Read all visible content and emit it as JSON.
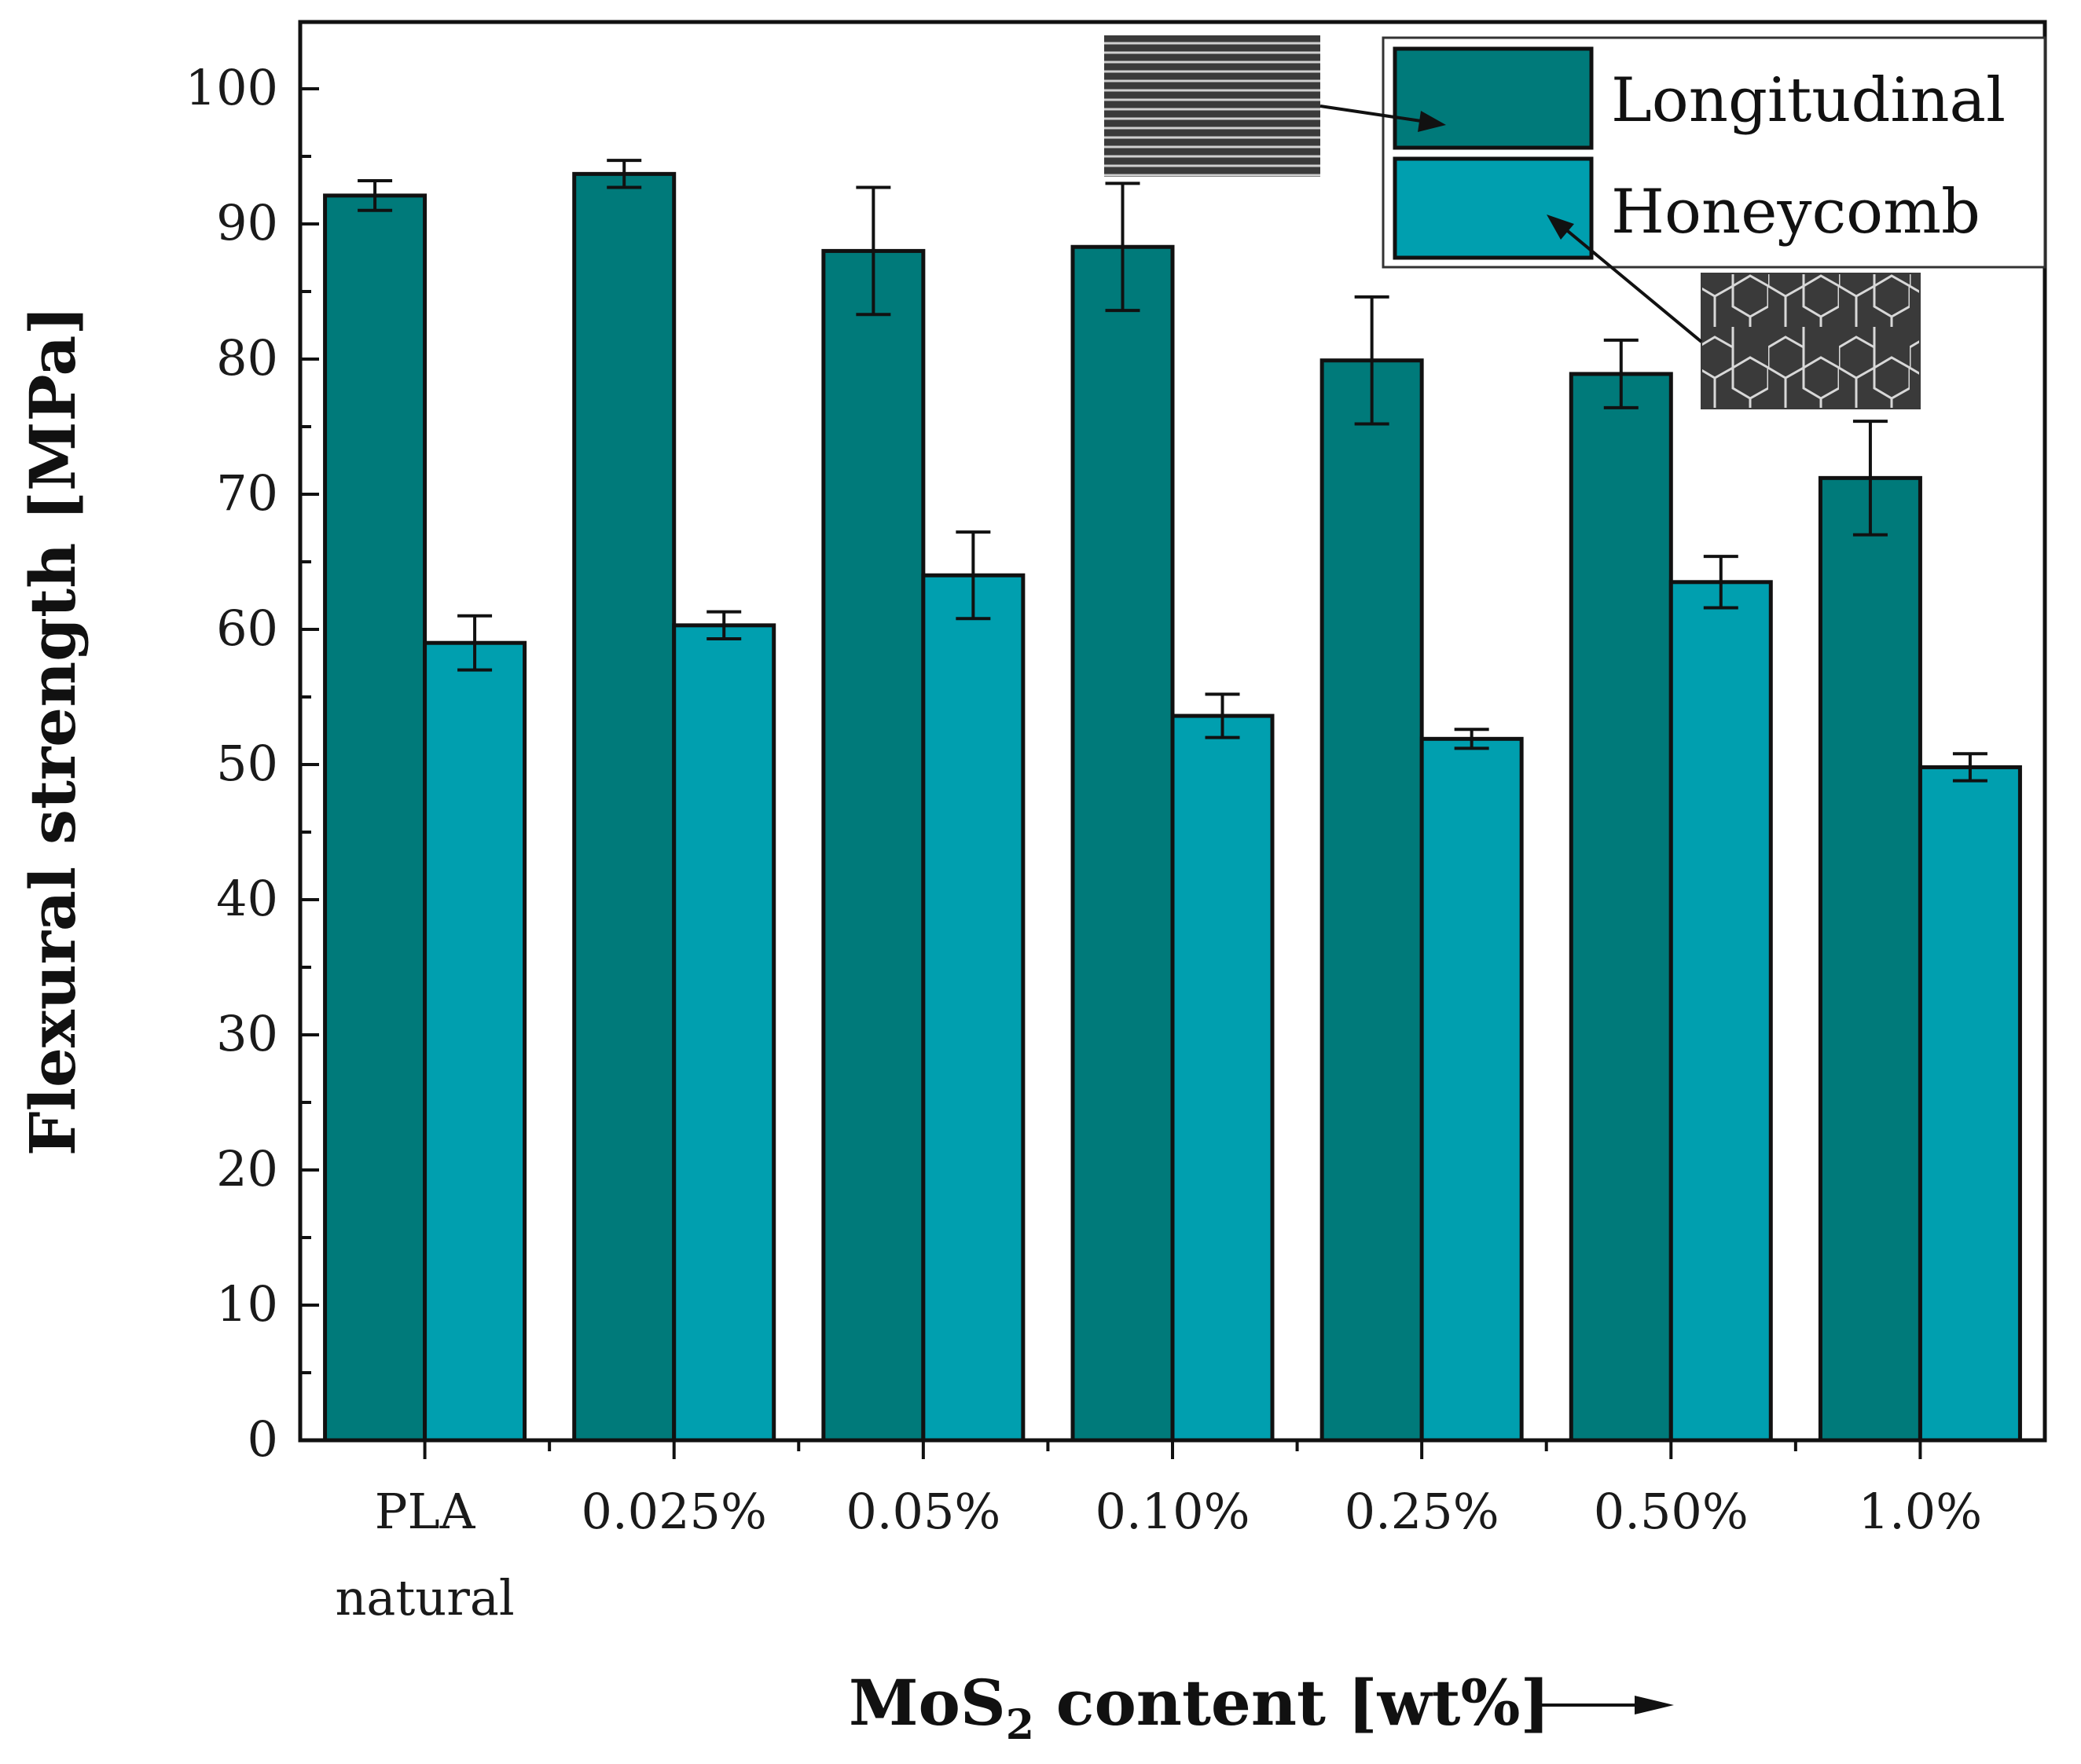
{
  "chart_data": {
    "type": "bar",
    "title": "",
    "xlabel_main": "MoS",
    "xlabel_sub": "2",
    "xlabel_rest": " content [wt%]",
    "ylabel": "Flexural strength [MPa]",
    "ylim": [
      0,
      100
    ],
    "yticks": [
      "0",
      "10",
      "20",
      "30",
      "40",
      "50",
      "60",
      "70",
      "80",
      "90",
      "100"
    ],
    "categories": [
      {
        "line1": "PLA",
        "line2": "natural"
      },
      {
        "line1": "0.025%",
        "line2": ""
      },
      {
        "line1": "0.05%",
        "line2": ""
      },
      {
        "line1": "0.10%",
        "line2": ""
      },
      {
        "line1": "0.25%",
        "line2": ""
      },
      {
        "line1": "0.50%",
        "line2": ""
      },
      {
        "line1": "1.0%",
        "line2": ""
      }
    ],
    "series": [
      {
        "name": "Longitudinal",
        "color": "#007a7a",
        "values": [
          92.1,
          93.7,
          88.0,
          88.3,
          79.9,
          78.9,
          71.2
        ],
        "errors": [
          1.1,
          1.0,
          4.7,
          4.7,
          4.7,
          2.5,
          4.2
        ]
      },
      {
        "name": "Honeycomb",
        "color": "#009faf",
        "values": [
          59.0,
          60.3,
          64.0,
          53.6,
          51.9,
          63.5,
          49.8
        ],
        "errors": [
          2.0,
          1.0,
          3.2,
          1.6,
          0.7,
          1.9,
          1.0
        ]
      }
    ],
    "legend_position": "top-right"
  }
}
